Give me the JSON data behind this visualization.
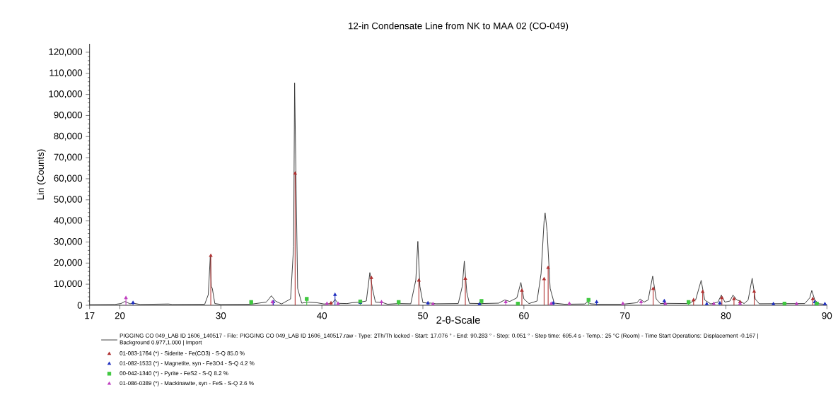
{
  "chart_data": {
    "type": "line",
    "title": "12-in Condensate Line from NK to MAA 02 (CO-049)",
    "xlabel": "2-θ-Scale",
    "ylabel": "Lin (Counts)",
    "xlim": [
      17,
      90
    ],
    "ylim": [
      0,
      124000
    ],
    "xticks": [
      17,
      20,
      30,
      40,
      50,
      60,
      70,
      80,
      90
    ],
    "yticks": [
      0,
      {
        "value": 10000,
        "label": "10,000"
      },
      {
        "value": 20000,
        "label": "20,000"
      },
      {
        "value": 30000,
        "label": "30,000"
      },
      {
        "value": 40000,
        "label": "40,000"
      },
      {
        "value": 50000,
        "label": "50,000"
      },
      {
        "value": 60000,
        "label": "60,000"
      },
      {
        "value": 70000,
        "label": "70,000"
      },
      {
        "value": 80000,
        "label": "80,000"
      },
      {
        "value": 90000,
        "label": "90,000"
      },
      {
        "value": 100000,
        "label": "100,000"
      },
      {
        "value": 110000,
        "label": "110,000"
      },
      {
        "value": 120000,
        "label": "120,000"
      }
    ],
    "legend": "bottom",
    "series": [
      {
        "name": "PIGGING CO 049_LAB ID 1606_140517 - File: PIGGING CO 049_LAB ID 1606_140517.raw - Type: 2Th/Th locked - Start: 17.076 ° - End: 90.283 ° - Step: 0.051 ° - Step time: 695.4 s - Temp.: 25 °C (Room) - Time Start Operations: Displacement -0.167 | Background 0.977,1.000 | Import",
        "color": "#333333",
        "marker": "none",
        "x": [
          17,
          19.5,
          20.1,
          20.5,
          21.0,
          21.4,
          22,
          24.8,
          25.2,
          28.4,
          28.75,
          28.95,
          29.05,
          29.15,
          29.4,
          30,
          33,
          34.5,
          35.0,
          35.4,
          36,
          36.9,
          37.2,
          37.3,
          37.45,
          37.6,
          38,
          38.6,
          39.5,
          40.2,
          41.0,
          41.3,
          41.6,
          42.5,
          43.0,
          43.8,
          44.4,
          44.75,
          45.0,
          45.3,
          46.0,
          46.5,
          47.6,
          48.8,
          49.3,
          49.5,
          49.7,
          50.0,
          50.8,
          51.3,
          53.5,
          53.9,
          54.1,
          54.35,
          54.6,
          55.8,
          57.5,
          58.1,
          58.6,
          59.3,
          59.7,
          60.0,
          60.5,
          61.3,
          61.7,
          62.0,
          62.1,
          62.3,
          62.6,
          63.0,
          64,
          66.0,
          66.3,
          66.6,
          67.2,
          69.8,
          71.2,
          71.5,
          71.9,
          72.3,
          72.75,
          73.1,
          73.5,
          74.0,
          76.3,
          77.0,
          77.55,
          77.9,
          78.5,
          79.2,
          79.55,
          79.9,
          80.4,
          80.7,
          81.1,
          81.4,
          81.8,
          82.2,
          82.6,
          82.9,
          83.3,
          87.8,
          88.3,
          88.5,
          88.8,
          89.2,
          90
        ],
        "values": [
          300,
          400,
          800,
          1800,
          700,
          900,
          400,
          600,
          400,
          500,
          5000,
          23000,
          9000,
          8000,
          800,
          400,
          500,
          1500,
          4500,
          2000,
          600,
          3000,
          28000,
          105500,
          55000,
          8000,
          1000,
          1500,
          1200,
          600,
          800,
          2800,
          900,
          800,
          1200,
          1500,
          2000,
          15500,
          8000,
          1500,
          1300,
          500,
          800,
          700,
          12000,
          30300,
          9000,
          1200,
          1000,
          700,
          800,
          9000,
          21000,
          6000,
          900,
          800,
          1000,
          2500,
          1800,
          3500,
          10800,
          3000,
          800,
          2000,
          15000,
          40000,
          43800,
          35000,
          8000,
          1000,
          500,
          600,
          1500,
          700,
          500,
          500,
          1200,
          3000,
          1500,
          2500,
          13800,
          3000,
          800,
          900,
          800,
          2500,
          11800,
          2500,
          600,
          1500,
          4800,
          1500,
          2000,
          4800,
          2500,
          2000,
          800,
          2500,
          12800,
          3000,
          700,
          800,
          3500,
          7000,
          2500,
          700,
          400
        ]
      },
      {
        "name": "01-083-1764 (*) - Siderite - Fe(CO3) - S-Q 85.0 %",
        "type": "lollipop",
        "color": "#b03030",
        "marker": "triangle",
        "x": [
          29.0,
          37.35,
          40.9,
          44.9,
          49.6,
          54.2,
          59.8,
          62.0,
          62.4,
          72.8,
          76.8,
          77.7,
          79.6,
          80.8,
          81.4,
          82.8,
          88.6
        ],
        "values": [
          23500,
          62500,
          1000,
          13000,
          11800,
          12600,
          7000,
          12400,
          17800,
          7800,
          2500,
          6400,
          3500,
          3000,
          1500,
          6500,
          3000
        ]
      },
      {
        "name": "01-082-1533 (*) - Magnetite, syn - Fe3O4 - S-Q 4.2 %",
        "type": "lollipop",
        "color": "#2030c0",
        "marker": "triangle",
        "x": [
          21.3,
          35.2,
          41.3,
          43.8,
          50.5,
          55.6,
          62.9,
          67.2,
          73.9,
          78.1,
          79.4,
          84.7,
          88.8,
          89.8
        ],
        "values": [
          1200,
          1500,
          5000,
          1200,
          1000,
          600,
          1000,
          1500,
          2000,
          600,
          1000,
          600,
          1500,
          600
        ]
      },
      {
        "name": "00-042-1340 (*) - Pyrite - FeS2 - S-Q 8.2 %",
        "type": "lollipop",
        "color": "#40c840",
        "marker": "square",
        "x": [
          33.0,
          38.5,
          43.8,
          47.6,
          55.8,
          59.4,
          66.4,
          76.3,
          85.8,
          89.0
        ],
        "values": [
          1500,
          3000,
          1800,
          1500,
          2000,
          800,
          2500,
          1500,
          800,
          800
        ]
      },
      {
        "name": "01-086-0389 (*) - Mackinawite, syn - FeS - S-Q 2.6 %",
        "type": "lollipop",
        "color": "#c040c0",
        "marker": "triangle",
        "x": [
          20.6,
          35.1,
          40.5,
          41.6,
          45.9,
          51.0,
          58.2,
          62.7,
          64.5,
          69.8,
          71.6,
          74.0,
          78.8,
          81.4,
          87.0
        ],
        "values": [
          3500,
          1500,
          800,
          800,
          1500,
          600,
          1500,
          800,
          800,
          800,
          1500,
          800,
          700,
          800,
          700
        ]
      }
    ]
  }
}
